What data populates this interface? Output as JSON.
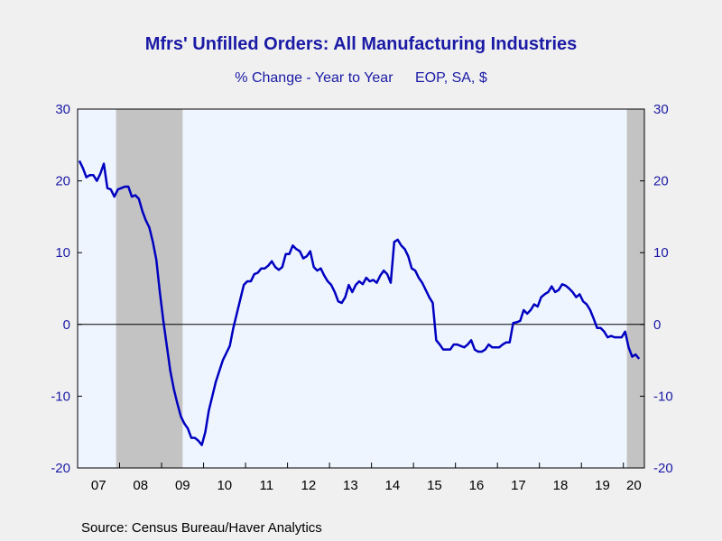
{
  "chart_data": {
    "type": "line",
    "title": "Mfrs' Unfilled Orders: All Manufacturing Industries",
    "subtitle_left": "% Change - Year to Year",
    "subtitle_right": "EOP, SA, $",
    "source": "Source:  Census Bureau/Haver Analytics",
    "ylim": [
      -20,
      30
    ],
    "xlim": [
      2007.0,
      2020.5
    ],
    "y_ticks": [
      -20,
      -10,
      0,
      10,
      20,
      30
    ],
    "x_tick_labels": [
      {
        "year": 2007,
        "label": "07"
      },
      {
        "year": 2008,
        "label": "08"
      },
      {
        "year": 2009,
        "label": "09"
      },
      {
        "year": 2010,
        "label": "10"
      },
      {
        "year": 2011,
        "label": "11"
      },
      {
        "year": 2012,
        "label": "12"
      },
      {
        "year": 2013,
        "label": "13"
      },
      {
        "year": 2014,
        "label": "14"
      },
      {
        "year": 2015,
        "label": "15"
      },
      {
        "year": 2016,
        "label": "16"
      },
      {
        "year": 2017,
        "label": "17"
      },
      {
        "year": 2018,
        "label": "18"
      },
      {
        "year": 2019,
        "label": "19"
      },
      {
        "year": 2020,
        "label": "20"
      }
    ],
    "recessions": [
      {
        "start": "2007-12",
        "end": "2009-06"
      },
      {
        "start": "2020-02",
        "end": "2020-06"
      }
    ],
    "zero_line": true,
    "line_color": "#0000c0",
    "series": [
      {
        "x": [
          "2007-01",
          "2007-02",
          "2007-03",
          "2007-04",
          "2007-05",
          "2007-06",
          "2007-07",
          "2007-08",
          "2007-09",
          "2007-10",
          "2007-11",
          "2007-12",
          "2008-01",
          "2008-02",
          "2008-03",
          "2008-04",
          "2008-05",
          "2008-06",
          "2008-07",
          "2008-08",
          "2008-09",
          "2008-10",
          "2008-11",
          "2008-12",
          "2009-01",
          "2009-02",
          "2009-03",
          "2009-04",
          "2009-05",
          "2009-06",
          "2009-07",
          "2009-08",
          "2009-09",
          "2009-10",
          "2009-11",
          "2009-12",
          "2010-01",
          "2010-02",
          "2010-03",
          "2010-04",
          "2010-05",
          "2010-06",
          "2010-07",
          "2010-08",
          "2010-09",
          "2010-10",
          "2010-11",
          "2010-12",
          "2011-01",
          "2011-02",
          "2011-03",
          "2011-04",
          "2011-05",
          "2011-06",
          "2011-07",
          "2011-08",
          "2011-09",
          "2011-10",
          "2011-11",
          "2011-12",
          "2012-01",
          "2012-02",
          "2012-03",
          "2012-04",
          "2012-05",
          "2012-06",
          "2012-07",
          "2012-08",
          "2012-09",
          "2012-10",
          "2012-11",
          "2012-12",
          "2013-01",
          "2013-02",
          "2013-03",
          "2013-04",
          "2013-05",
          "2013-06",
          "2013-07",
          "2013-08",
          "2013-09",
          "2013-10",
          "2013-11",
          "2013-12",
          "2014-01",
          "2014-02",
          "2014-03",
          "2014-04",
          "2014-05",
          "2014-06",
          "2014-07",
          "2014-08",
          "2014-09",
          "2014-10",
          "2014-11",
          "2014-12",
          "2015-01",
          "2015-02",
          "2015-03",
          "2015-04",
          "2015-05",
          "2015-06",
          "2015-07",
          "2015-08",
          "2015-09",
          "2015-10",
          "2015-11",
          "2015-12",
          "2016-01",
          "2016-02",
          "2016-03",
          "2016-04",
          "2016-05",
          "2016-06",
          "2016-07",
          "2016-08",
          "2016-09",
          "2016-10",
          "2016-11",
          "2016-12",
          "2017-01",
          "2017-02",
          "2017-03",
          "2017-04",
          "2017-05",
          "2017-06",
          "2017-07",
          "2017-08",
          "2017-09",
          "2017-10",
          "2017-11",
          "2017-12",
          "2018-01",
          "2018-02",
          "2018-03",
          "2018-04",
          "2018-05",
          "2018-06",
          "2018-07",
          "2018-08",
          "2018-09",
          "2018-10",
          "2018-11",
          "2018-12",
          "2019-01",
          "2019-02",
          "2019-03",
          "2019-04",
          "2019-05",
          "2019-06",
          "2019-07",
          "2019-08",
          "2019-09",
          "2019-10",
          "2019-11",
          "2019-12",
          "2020-01",
          "2020-02",
          "2020-03",
          "2020-04",
          "2020-05"
        ],
        "values": [
          22.8,
          21.8,
          20.5,
          20.8,
          20.8,
          20.0,
          21.0,
          22.4,
          19.0,
          18.8,
          17.8,
          18.8,
          19.0,
          19.2,
          19.2,
          17.8,
          18.0,
          17.5,
          15.8,
          14.5,
          13.5,
          11.5,
          9.0,
          4.5,
          0.5,
          -3.0,
          -6.5,
          -9.0,
          -11.0,
          -12.8,
          -13.8,
          -14.5,
          -15.8,
          -15.8,
          -16.2,
          -16.8,
          -15.0,
          -12.0,
          -10.0,
          -8.0,
          -6.5,
          -5.0,
          -4.0,
          -3.0,
          -0.5,
          1.5,
          3.5,
          5.5,
          6.0,
          6.0,
          7.0,
          7.2,
          7.8,
          7.8,
          8.2,
          8.8,
          8.0,
          7.6,
          8.0,
          9.8,
          9.8,
          11.0,
          10.5,
          10.2,
          9.2,
          9.5,
          10.2,
          8.0,
          7.5,
          7.8,
          6.8,
          6.0,
          5.5,
          4.5,
          3.2,
          3.0,
          3.8,
          5.5,
          4.5,
          5.5,
          6.0,
          5.6,
          6.5,
          6.0,
          6.2,
          5.8,
          6.8,
          7.5,
          7.0,
          5.8,
          11.5,
          11.8,
          11.0,
          10.5,
          9.5,
          7.8,
          7.5,
          6.5,
          5.8,
          4.8,
          3.8,
          3.0,
          -2.2,
          -2.8,
          -3.5,
          -3.5,
          -3.5,
          -2.8,
          -2.8,
          -3.0,
          -3.2,
          -2.8,
          -2.2,
          -3.5,
          -3.8,
          -3.8,
          -3.5,
          -2.8,
          -3.2,
          -3.2,
          -3.2,
          -2.8,
          -2.5,
          -2.5,
          0.2,
          0.3,
          0.5,
          2.0,
          1.5,
          2.0,
          2.8,
          2.5,
          3.8,
          4.2,
          4.5,
          5.3,
          4.5,
          4.8,
          5.6,
          5.4,
          5.0,
          4.5,
          3.8,
          4.2,
          3.2,
          2.8,
          2.0,
          0.8,
          -0.5,
          -0.5,
          -1.0,
          -1.8,
          -1.6,
          -1.8,
          -1.8,
          -1.8,
          -1.0,
          -3.2,
          -4.5,
          -4.2,
          -4.8
        ]
      }
    ]
  },
  "colors": {
    "title": "#1a1aa6",
    "axis_text": "#1a1aa6",
    "plot_bg": "#eef5ff",
    "recession_fill": "#c3c3c3",
    "line": "#0000c0"
  }
}
